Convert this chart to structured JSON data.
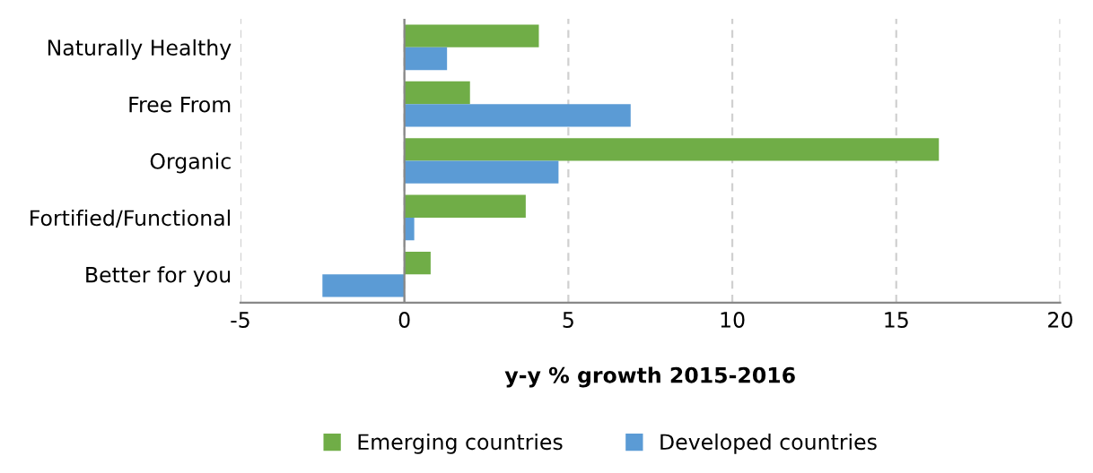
{
  "chart_data": {
    "type": "bar",
    "orientation": "horizontal",
    "xlabel": "y-y % growth 2015-2016",
    "categories": [
      "Naturally Healthy",
      "Free From",
      "Organic",
      "Fortified/Functional",
      "Better for you"
    ],
    "series": [
      {
        "name": "Emerging countries",
        "color": "#70ad47",
        "values": [
          4.1,
          2.0,
          16.3,
          3.7,
          0.8
        ]
      },
      {
        "name": "Developed countries",
        "color": "#5b9bd5",
        "values": [
          1.3,
          6.9,
          4.7,
          0.3,
          -2.5
        ]
      }
    ],
    "xlim": [
      -5,
      20
    ],
    "xticks": [
      -5,
      0,
      5,
      10,
      15,
      20
    ],
    "grid": "x",
    "legend": "bottom"
  }
}
